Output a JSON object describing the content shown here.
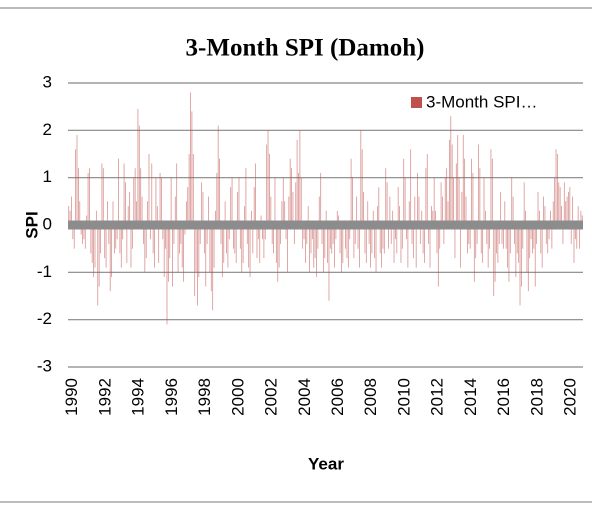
{
  "chart_data": {
    "type": "bar",
    "title": "3-Month SPI (Damoh)",
    "x_label": "Year",
    "y_label": "SPI",
    "ylim": [
      -3,
      3
    ],
    "yticks": [
      -3,
      -2,
      -1,
      0,
      1,
      2,
      3
    ],
    "grid": true,
    "legend": "upper right",
    "categories": [
      "1990",
      null,
      null,
      null,
      null,
      null,
      null,
      null,
      null,
      null,
      null,
      null,
      null,
      null,
      null,
      null,
      null,
      null,
      null,
      null,
      null,
      null,
      null,
      null,
      "1992",
      null,
      null,
      null,
      null,
      null,
      null,
      null,
      null,
      null,
      null,
      null,
      null,
      null,
      null,
      null,
      null,
      null,
      null,
      null,
      null,
      null,
      null,
      null,
      "1994",
      null,
      null,
      null,
      null,
      null,
      null,
      null,
      null,
      null,
      null,
      null,
      null,
      null,
      null,
      null,
      null,
      null,
      null,
      null,
      null,
      null,
      null,
      null,
      "1996",
      null,
      null,
      null,
      null,
      null,
      null,
      null,
      null,
      null,
      null,
      null,
      null,
      null,
      null,
      null,
      null,
      null,
      null,
      null,
      null,
      null,
      null,
      null,
      "1998",
      null,
      null,
      null,
      null,
      null,
      null,
      null,
      null,
      null,
      null,
      null,
      null,
      null,
      null,
      null,
      null,
      null,
      null,
      null,
      null,
      null,
      null,
      null,
      "2000",
      null,
      null,
      null,
      null,
      null,
      null,
      null,
      null,
      null,
      null,
      null,
      null,
      null,
      null,
      null,
      null,
      null,
      null,
      null,
      null,
      null,
      null,
      null,
      "2002",
      null,
      null,
      null,
      null,
      null,
      null,
      null,
      null,
      null,
      null,
      null,
      null,
      null,
      null,
      null,
      null,
      null,
      null,
      null,
      null,
      null,
      null,
      null,
      "2004",
      null,
      null,
      null,
      null,
      null,
      null,
      null,
      null,
      null,
      null,
      null,
      null,
      null,
      null,
      null,
      null,
      null,
      null,
      null,
      null,
      null,
      null,
      null,
      "2006",
      null,
      null,
      null,
      null,
      null,
      null,
      null,
      null,
      null,
      null,
      null,
      null,
      null,
      null,
      null,
      null,
      null,
      null,
      null,
      null,
      null,
      null,
      null,
      "2008",
      null,
      null,
      null,
      null,
      null,
      null,
      null,
      null,
      null,
      null,
      null,
      null,
      null,
      null,
      null,
      null,
      null,
      null,
      null,
      null,
      null,
      null,
      null,
      "2010",
      null,
      null,
      null,
      null,
      null,
      null,
      null,
      null,
      null,
      null,
      null,
      null,
      null,
      null,
      null,
      null,
      null,
      null,
      null,
      null,
      null,
      null,
      null,
      "2012",
      null,
      null,
      null,
      null,
      null,
      null,
      null,
      null,
      null,
      null,
      null,
      null,
      null,
      null,
      null,
      null,
      null,
      null,
      null,
      null,
      null,
      null,
      null,
      "2014",
      null,
      null,
      null,
      null,
      null,
      null,
      null,
      null,
      null,
      null,
      null,
      null,
      null,
      null,
      null,
      null,
      null,
      null,
      null,
      null,
      null,
      null,
      null,
      "2016",
      null,
      null,
      null,
      null,
      null,
      null,
      null,
      null,
      null,
      null,
      null,
      null,
      null,
      null,
      null,
      null,
      null,
      null,
      null,
      null,
      null,
      null,
      null,
      "2018",
      null,
      null,
      null,
      null,
      null,
      null,
      null,
      null,
      null,
      null,
      null,
      null,
      null,
      null,
      null,
      null,
      null,
      null,
      null,
      null,
      null,
      null,
      null,
      "2020",
      null,
      null,
      null,
      null,
      null,
      null,
      null,
      null,
      null,
      null,
      null
    ],
    "series": [
      {
        "name": "3-Month SPI…",
        "color": "#c0504d",
        "values": [
          0.4,
          0.3,
          0.6,
          -0.3,
          -0.5,
          1.6,
          1.9,
          1.2,
          0.5,
          -0.2,
          -0.4,
          -0.3,
          -0.5,
          0.2,
          1.1,
          1.2,
          -0.6,
          -0.8,
          -1.1,
          -0.9,
          0.3,
          -1.7,
          -1.3,
          -0.6,
          1.3,
          1.2,
          -0.7,
          -0.9,
          0.5,
          -0.4,
          -1.4,
          -1.1,
          0.5,
          -0.6,
          -0.5,
          -0.3,
          1.4,
          -0.6,
          -0.9,
          -0.3,
          1.3,
          0.9,
          -0.8,
          0.4,
          0.7,
          -0.9,
          -0.5,
          1.0,
          1.2,
          0.5,
          2.45,
          2.1,
          1.2,
          0.6,
          -0.4,
          -1.0,
          -0.7,
          0.5,
          1.5,
          -0.3,
          1.3,
          -0.6,
          -0.9,
          1.0,
          0.4,
          -0.8,
          1.1,
          1.0,
          -0.3,
          -1.1,
          -0.5,
          -2.1,
          -1.2,
          -0.7,
          1.0,
          -1.3,
          -0.4,
          0.6,
          1.3,
          -1.0,
          -0.6,
          -0.4,
          -0.9,
          -1.2,
          -0.2,
          0.5,
          0.8,
          1.5,
          2.8,
          2.4,
          1.5,
          -1.5,
          -1.0,
          -1.7,
          -1.1,
          -0.4,
          0.9,
          0.7,
          -0.6,
          -1.3,
          -0.4,
          0.6,
          -1.0,
          -1.4,
          -1.8,
          -0.9,
          0.3,
          1.1,
          2.1,
          1.4,
          -0.4,
          -1.1,
          -0.8,
          0.5,
          -0.6,
          -0.9,
          -0.3,
          0.8,
          1.0,
          -0.5,
          -0.6,
          -0.8,
          0.7,
          1.0,
          -0.5,
          -1.0,
          -0.8,
          0.4,
          1.2,
          -0.4,
          -0.9,
          -1.1,
          0.3,
          -0.6,
          0.8,
          1.3,
          -0.7,
          -0.3,
          -0.8,
          0.2,
          -0.3,
          -0.7,
          -0.3,
          1.7,
          2.0,
          1.5,
          0.6,
          -0.4,
          -0.6,
          1.0,
          -0.8,
          -1.2,
          -0.9,
          -0.4,
          0.5,
          1.0,
          0.5,
          -0.3,
          -1.0,
          0.6,
          1.4,
          1.2,
          0.7,
          -0.4,
          0.9,
          1.8,
          1.1,
          2.0,
          1.0,
          -0.5,
          -0.3,
          -0.8,
          -0.4,
          0.4,
          -1.0,
          -0.6,
          -0.3,
          -0.9,
          -0.7,
          -1.1,
          -0.5,
          0.6,
          1.1,
          -0.4,
          -1.0,
          -0.7,
          0.3,
          -0.8,
          -1.6,
          -0.5,
          -0.6,
          -0.4,
          -0.9,
          -0.3,
          0.3,
          0.2,
          -0.6,
          -1.0,
          -0.8,
          0.1,
          -0.5,
          -0.7,
          -0.9,
          -0.3,
          1.4,
          1.0,
          -0.7,
          -0.4,
          0.6,
          -0.5,
          -0.9,
          2.0,
          1.6,
          0.7,
          -0.6,
          -0.8,
          0.5,
          -0.4,
          -0.9,
          -0.6,
          0.3,
          -0.7,
          -1.0,
          0.4,
          0.8,
          -0.6,
          -0.9,
          -0.5,
          -0.6,
          1.2,
          0.9,
          -0.5,
          0.6,
          -0.4,
          0.3,
          -0.8,
          -0.3,
          -0.6,
          0.8,
          0.4,
          -0.8,
          -0.5,
          1.4,
          1.0,
          -0.3,
          -0.9,
          0.5,
          1.6,
          -0.4,
          -0.7,
          0.6,
          -0.9,
          1.1,
          0.6,
          -0.4,
          0.3,
          -0.6,
          -0.8,
          1.2,
          1.5,
          -0.4,
          -0.9,
          0.4,
          0.3,
          1.0,
          0.3,
          -0.6,
          -1.3,
          -0.5,
          0.9,
          0.6,
          -0.4,
          1.0,
          1.2,
          0.5,
          1.8,
          2.3,
          1.7,
          1.0,
          -0.7,
          1.3,
          1.9,
          1.0,
          -0.9,
          0.7,
          1.9,
          1.4,
          0.6,
          -0.6,
          -0.4,
          -0.5,
          1.4,
          1.1,
          -1.2,
          -0.7,
          -0.4,
          1.7,
          1.2,
          -0.6,
          -0.8,
          1.0,
          0.3,
          -0.4,
          -0.9,
          -0.5,
          1.6,
          1.4,
          -1.5,
          -1.2,
          -0.6,
          -0.8,
          -0.4,
          0.7,
          -0.4,
          -0.5,
          0.5,
          -0.5,
          -0.9,
          -1.2,
          -0.6,
          1.0,
          0.6,
          -0.4,
          -1.1,
          -0.6,
          -0.8,
          -1.7,
          -1.3,
          -0.5,
          0.9,
          0.3,
          -1.0,
          -1.4,
          -0.7,
          -0.3,
          -0.6,
          -0.5,
          -1.3,
          -0.4,
          0.7,
          0.3,
          -0.6,
          -0.9,
          0.6,
          0.4,
          -0.4,
          -0.6,
          -0.3,
          0.3,
          -0.5,
          0.5,
          1.0,
          1.6,
          1.5,
          0.9,
          0.8,
          0.4,
          -0.4,
          0.9,
          0.5,
          0.6,
          0.7,
          0.8,
          -0.4,
          0.6,
          -0.8,
          -0.3,
          -0.5,
          0.4,
          -0.5,
          0.3,
          0.2
        ]
      }
    ]
  }
}
